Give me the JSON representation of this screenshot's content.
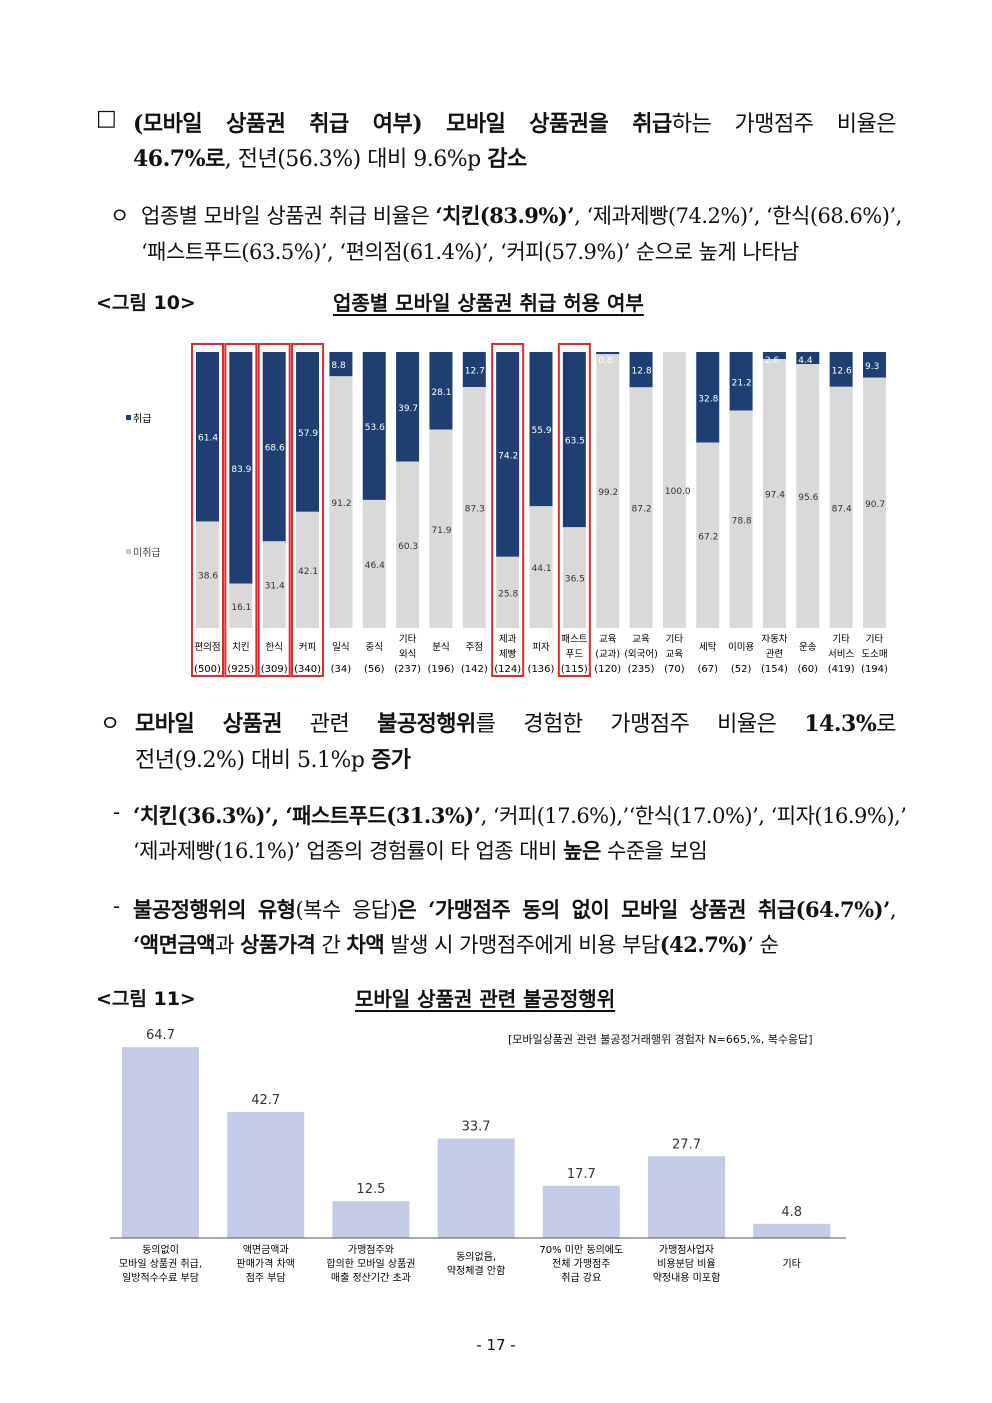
{
  "paragraphs": [
    {
      "bullet": "□",
      "lines": [
        [
          {
            "t": "(모바일 상품권 취급 여부) 모바일 상품권을 취급",
            "b": true
          },
          {
            "t": "하는 가맹점주 비율은",
            "b": false
          }
        ],
        [
          {
            "t": "46.7%로",
            "b": true
          },
          {
            "t": ", 전년(56.3%) 대비 9.6%p ",
            "b": false
          },
          {
            "t": "감소",
            "b": true
          }
        ]
      ]
    },
    {
      "bullet": "ㅇ",
      "lines": [
        [
          {
            "t": "업종별 모바일 상품권 취급 비율은 ",
            "b": false
          },
          {
            "t": "‘치킨(83.9%)’",
            "b": true
          },
          {
            "t": ", ‘제과제빵(74.2%)’, ‘한식(68.6%)’,",
            "b": false
          }
        ],
        [
          {
            "t": "‘패스트푸드(63.5%)’, ‘편의점(61.4%)’, ‘커피(57.9%)’ 순으로 높게 나타남",
            "b": false
          }
        ]
      ]
    },
    {
      "bullet": "ㅇ",
      "lines": [
        [
          {
            "t": "모바일 상품권",
            "b": true
          },
          {
            "t": " 관련 ",
            "b": false
          },
          {
            "t": "불공정행위",
            "b": true
          },
          {
            "t": "를 경험한 가맹점주 비율은 ",
            "b": false
          },
          {
            "t": "14.3%",
            "b": true
          },
          {
            "t": "로",
            "b": false
          }
        ],
        [
          {
            "t": "전년(9.2%) 대비 5.1%p ",
            "b": false
          },
          {
            "t": "증가",
            "b": true
          }
        ]
      ]
    },
    {
      "bullet": "-",
      "lines": [
        [
          {
            "t": "‘치킨(36.3%)’, ‘패스트푸드(31.3%)’",
            "b": true
          },
          {
            "t": ", ‘커피(17.6%),’‘한식(17.0%)’, ‘피자(16.9%),’",
            "b": false
          }
        ],
        [
          {
            "t": "‘제과제빵(16.1%)’ 업종의 경험률이 타 업종 대비 ",
            "b": false
          },
          {
            "t": "높은",
            "b": true
          },
          {
            "t": " 수준을 보임",
            "b": false
          }
        ]
      ]
    },
    {
      "bullet": "-",
      "lines": [
        [
          {
            "t": "불공정행위의 유형",
            "b": true
          },
          {
            "t": "(복수 응답)",
            "b": false
          },
          {
            "t": "은 ‘가맹점주 동의 없이 모바일 상품권 취급(64.7%)’",
            "b": true
          },
          {
            "t": ",",
            "b": false
          }
        ],
        [
          {
            "t": "‘액면금액",
            "b": true
          },
          {
            "t": "과 ",
            "b": false
          },
          {
            "t": "상품가격",
            "b": true
          },
          {
            "t": " 간 ",
            "b": false
          },
          {
            "t": "차액",
            "b": true
          },
          {
            "t": " 발생 시 가맹점주에게 비용 부담",
            "b": false
          },
          {
            "t": "(42.7%)",
            "b": true
          },
          {
            "t": "’ 순",
            "b": false
          }
        ]
      ]
    }
  ],
  "figure10": {
    "label": "<그림 10>",
    "title": "업종별 모바일 상품권 취급 허용 여부"
  },
  "figure11": {
    "label": "<그림 11>",
    "title": "모바일 상품권 관련 불공정행위"
  },
  "colors": {
    "handled": "#1f3f73",
    "not_handled": "#d9d9d9",
    "highlight": "#e8262a",
    "bar2": "#c3cbe6"
  },
  "chart_data": [
    {
      "type": "bar",
      "stacked": true,
      "legend": {
        "placement": "left",
        "entries": [
          "취급",
          "미취급"
        ]
      },
      "categories": [
        {
          "name": [
            "편의점"
          ],
          "n": "(500)",
          "highlight": true
        },
        {
          "name": [
            "치킨"
          ],
          "n": "(925)",
          "highlight": true
        },
        {
          "name": [
            "한식"
          ],
          "n": "(309)",
          "highlight": true
        },
        {
          "name": [
            "커피"
          ],
          "n": "(340)",
          "highlight": true
        },
        {
          "name": [
            "일식"
          ],
          "n": "(34)",
          "highlight": false
        },
        {
          "name": [
            "중식"
          ],
          "n": "(56)",
          "highlight": false
        },
        {
          "name": [
            "기타",
            "외식"
          ],
          "n": "(237)",
          "highlight": false
        },
        {
          "name": [
            "분식"
          ],
          "n": "(196)",
          "highlight": false
        },
        {
          "name": [
            "주점"
          ],
          "n": "(142)",
          "highlight": false
        },
        {
          "name": [
            "제과",
            "제빵"
          ],
          "n": "(124)",
          "highlight": true
        },
        {
          "name": [
            "피자"
          ],
          "n": "(136)",
          "highlight": false
        },
        {
          "name": [
            "패스트",
            "푸드"
          ],
          "n": "(115)",
          "highlight": true
        },
        {
          "name": [
            "교육",
            "(교과)"
          ],
          "n": "(120)",
          "highlight": false
        },
        {
          "name": [
            "교육",
            "(외국어)"
          ],
          "n": "(235)",
          "highlight": false
        },
        {
          "name": [
            "기타",
            "교육"
          ],
          "n": "(70)",
          "highlight": false
        },
        {
          "name": [
            "세탁"
          ],
          "n": "(67)",
          "highlight": false
        },
        {
          "name": [
            "이미용"
          ],
          "n": "(52)",
          "highlight": false
        },
        {
          "name": [
            "자동차",
            "관련"
          ],
          "n": "(154)",
          "highlight": false
        },
        {
          "name": [
            "운송"
          ],
          "n": "(60)",
          "highlight": false
        },
        {
          "name": [
            "기타",
            "서비스"
          ],
          "n": "(419)",
          "highlight": false
        },
        {
          "name": [
            "기타",
            "도소매"
          ],
          "n": "(194)",
          "highlight": false
        }
      ],
      "series": [
        {
          "name": "취급",
          "values": [
            61.4,
            83.9,
            68.6,
            57.9,
            8.8,
            53.6,
            39.7,
            28.1,
            12.7,
            74.2,
            55.9,
            63.5,
            0.8,
            12.8,
            0,
            32.8,
            21.2,
            2.6,
            4.4,
            12.6,
            9.3
          ]
        },
        {
          "name": "미취급",
          "values": [
            38.6,
            16.1,
            31.4,
            42.1,
            91.2,
            46.4,
            60.3,
            71.9,
            87.3,
            25.8,
            44.1,
            36.5,
            99.2,
            87.2,
            100.0,
            67.2,
            78.8,
            97.4,
            95.6,
            87.4,
            90.7
          ]
        }
      ],
      "ylim": [
        0,
        100
      ]
    },
    {
      "type": "bar",
      "note": "[모바일상품권 관련 불공정거래행위 경험자 N=665,%, 복수응답]",
      "categories": [
        [
          "동의없이",
          "모바일 상품권 취급,",
          "일방적수수료 부담"
        ],
        [
          "액면금액과",
          "판매가격 차액",
          "점주 부담"
        ],
        [
          "가맹점주와",
          "합의한 모바일 상품권",
          "매출 정산기간 초과"
        ],
        [
          "동의없음,",
          "약정체결 안함"
        ],
        [
          "70% 미만 동의에도",
          "전체 가맹점주",
          "취급 강요"
        ],
        [
          "가맹점사업자",
          "비용분담 비율",
          "약정내용 미포함"
        ],
        [
          "기타"
        ]
      ],
      "values": [
        64.7,
        42.7,
        12.5,
        33.7,
        17.7,
        27.7,
        4.8
      ],
      "labels": [
        "64.7",
        "42.7",
        "12.5",
        "33.7",
        "17.7",
        "27.7",
        "4.8"
      ],
      "ylim": [
        0,
        70
      ]
    }
  ],
  "page_number": "- 17 -"
}
